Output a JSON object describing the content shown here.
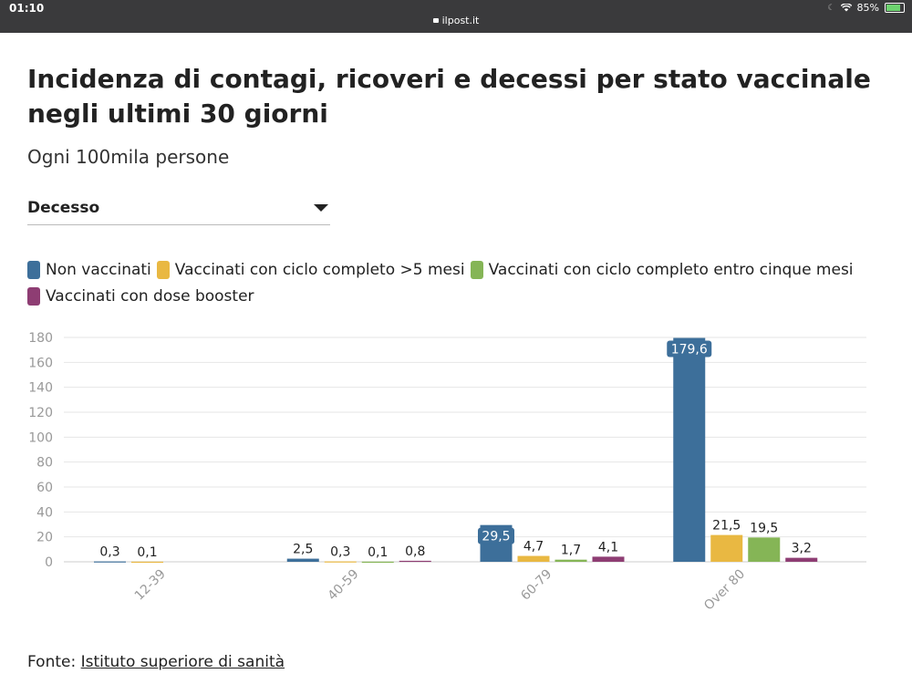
{
  "statusbar": {
    "time": "01:10",
    "url": "ilpost.it",
    "battery": "85%",
    "battery_level": 0.85
  },
  "title": "Incidenza di contagi, ricoveri e decessi per stato vaccinale negli ultimi 30 giorni",
  "subtitle": "Ogni 100mila persone",
  "dropdown": {
    "selected": "Decesso"
  },
  "source": {
    "prefix": "Fonte: ",
    "link": "Istituto superiore di sanità"
  },
  "colors": {
    "non_vaccinati": "#3d6f9a",
    "oltre5": "#e9b842",
    "entro5": "#85b556",
    "booster": "#8e3d73"
  },
  "chart_data": {
    "type": "bar",
    "categories": [
      "12-39",
      "40-59",
      "60-79",
      "Over 80"
    ],
    "series": [
      {
        "name": "Non vaccinati",
        "color": "#3d6f9a",
        "values": [
          0.3,
          2.5,
          29.5,
          179.6
        ],
        "labels": [
          "0,3",
          "2,5",
          "29,5",
          "179,6"
        ]
      },
      {
        "name": "Vaccinati con ciclo completo >5 mesi",
        "color": "#e9b842",
        "values": [
          0.1,
          0.3,
          4.7,
          21.5
        ],
        "labels": [
          "0,1",
          "0,3",
          "4,7",
          "21,5"
        ]
      },
      {
        "name": "Vaccinati con ciclo completo entro cinque mesi",
        "color": "#85b556",
        "values": [
          null,
          0.1,
          1.7,
          19.5
        ],
        "labels": [
          "",
          "0,1",
          "1,7",
          "19,5"
        ]
      },
      {
        "name": "Vaccinati con dose booster",
        "color": "#8e3d73",
        "values": [
          null,
          0.8,
          4.1,
          3.2
        ],
        "labels": [
          "",
          "0,8",
          "4,1",
          "3,2"
        ]
      }
    ],
    "yticks": [
      0,
      20,
      40,
      60,
      80,
      100,
      120,
      140,
      160,
      180
    ],
    "ylim": [
      0,
      180
    ],
    "grid": true,
    "legend": "top"
  }
}
